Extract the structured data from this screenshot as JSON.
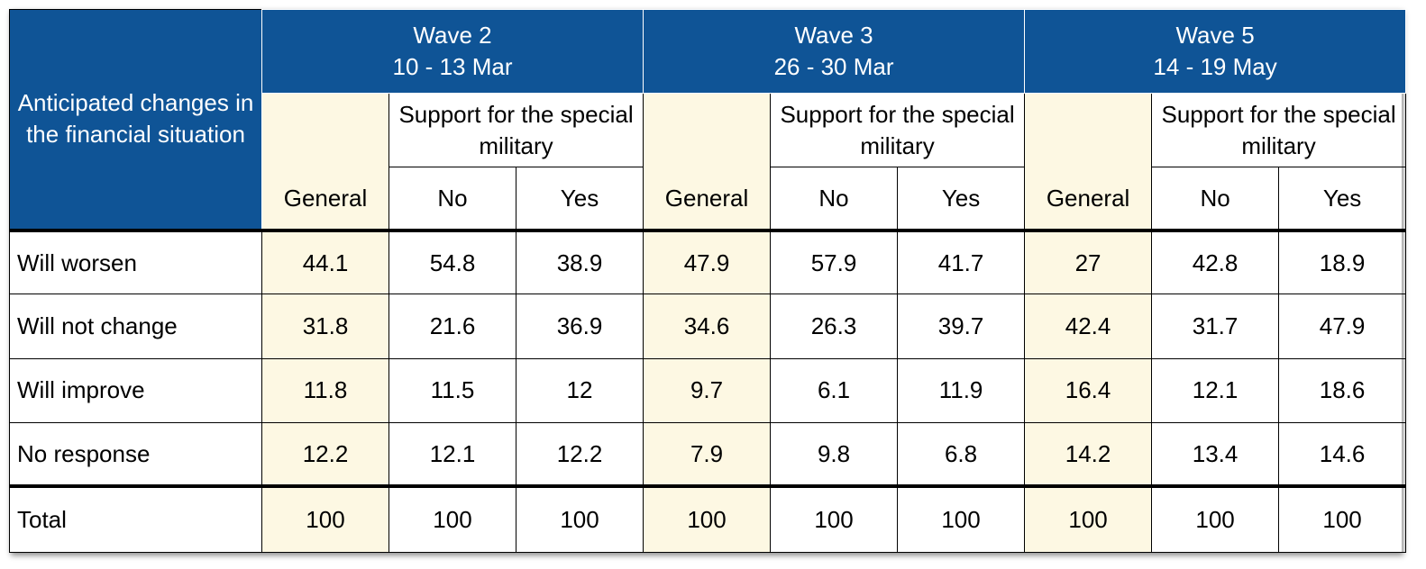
{
  "table": {
    "corner_label": "Anticipated changes in the financial situation",
    "waves": [
      {
        "name": "Wave 2",
        "dates": "10 - 13 Mar"
      },
      {
        "name": "Wave 3",
        "dates": "26 - 30 Mar"
      },
      {
        "name": "Wave 5",
        "dates": "14 - 19 May"
      }
    ],
    "support_label": "Support for the special military",
    "sub_headers": {
      "general": "General",
      "no": "No",
      "yes": "Yes"
    },
    "rows": [
      {
        "label": "Will worsen",
        "values": [
          "44.1",
          "54.8",
          "38.9",
          "47.9",
          "57.9",
          "41.7",
          "27",
          "42.8",
          "18.9"
        ]
      },
      {
        "label": "Will not change",
        "values": [
          "31.8",
          "21.6",
          "36.9",
          "34.6",
          "26.3",
          "39.7",
          "42.4",
          "31.7",
          "47.9"
        ]
      },
      {
        "label": "Will improve",
        "values": [
          "11.8",
          "11.5",
          "12",
          "9.7",
          "6.1",
          "11.9",
          "16.4",
          "12.1",
          "18.6"
        ]
      },
      {
        "label": "No response",
        "values": [
          "12.2",
          "12.1",
          "12.2",
          "7.9",
          "9.8",
          "6.8",
          "14.2",
          "13.4",
          "14.6"
        ]
      }
    ],
    "total": {
      "label": "Total",
      "values": [
        "100",
        "100",
        "100",
        "100",
        "100",
        "100",
        "100",
        "100",
        "100"
      ]
    }
  }
}
